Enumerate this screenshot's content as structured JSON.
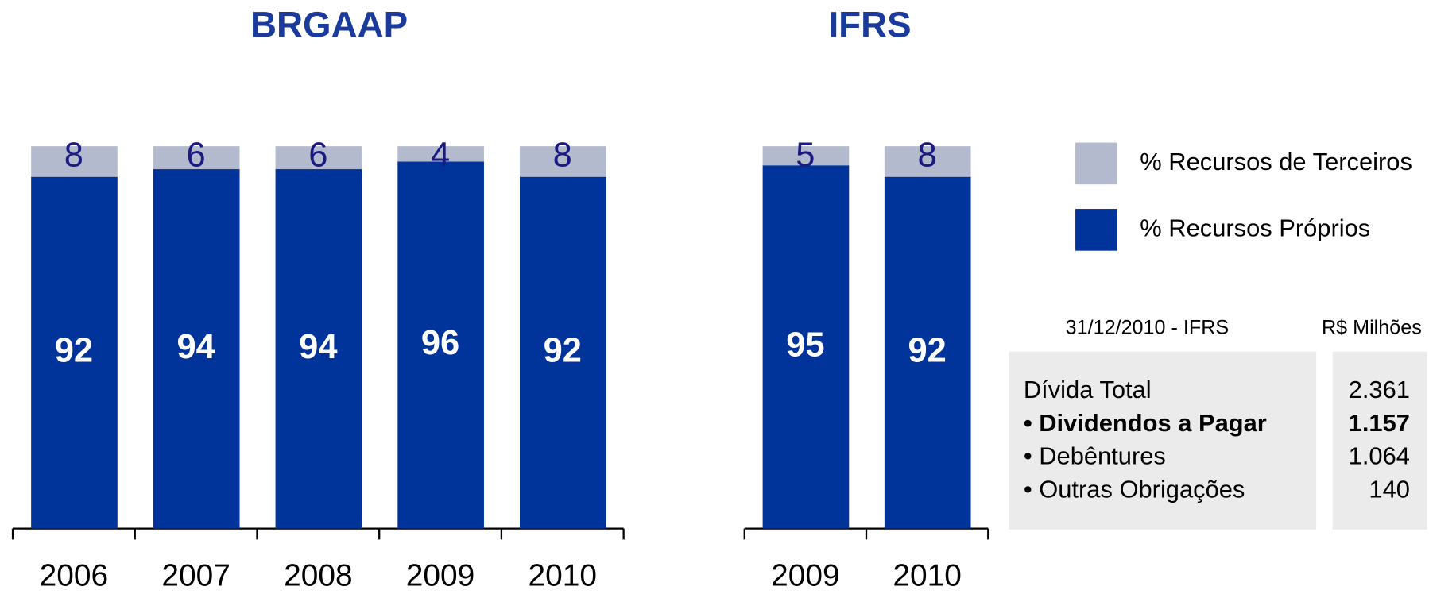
{
  "chart_data": [
    {
      "type": "stacked_bar",
      "title": "BRGAAP",
      "categories": [
        "2006",
        "2007",
        "2008",
        "2009",
        "2010"
      ],
      "series": [
        {
          "name": "% Recursos Próprios",
          "color": "#00349a",
          "values": [
            92,
            94,
            94,
            96,
            92
          ]
        },
        {
          "name": "% Recursos de Terceiros",
          "color": "#b3bacd",
          "values": [
            8,
            6,
            6,
            4,
            8
          ]
        }
      ]
    },
    {
      "type": "stacked_bar",
      "title": "IFRS",
      "categories": [
        "2009",
        "2010"
      ],
      "series": [
        {
          "color": "#00349a",
          "values": [
            95,
            92
          ]
        },
        {
          "color": "#b3bacd",
          "values": [
            5,
            8
          ]
        }
      ]
    }
  ],
  "table": {
    "header": [
      "31/12/2010 - IFRS",
      "R$ Milhões"
    ],
    "rows": [
      {
        "label": "Dívida Total",
        "value": "2.361"
      },
      {
        "label": "• Dividendos a Pagar",
        "value": "1.157",
        "bold": true
      },
      {
        "label": "• Debêntures",
        "value": "1.064"
      },
      {
        "label": "• Outras Obrigações",
        "value": "140"
      }
    ]
  }
}
